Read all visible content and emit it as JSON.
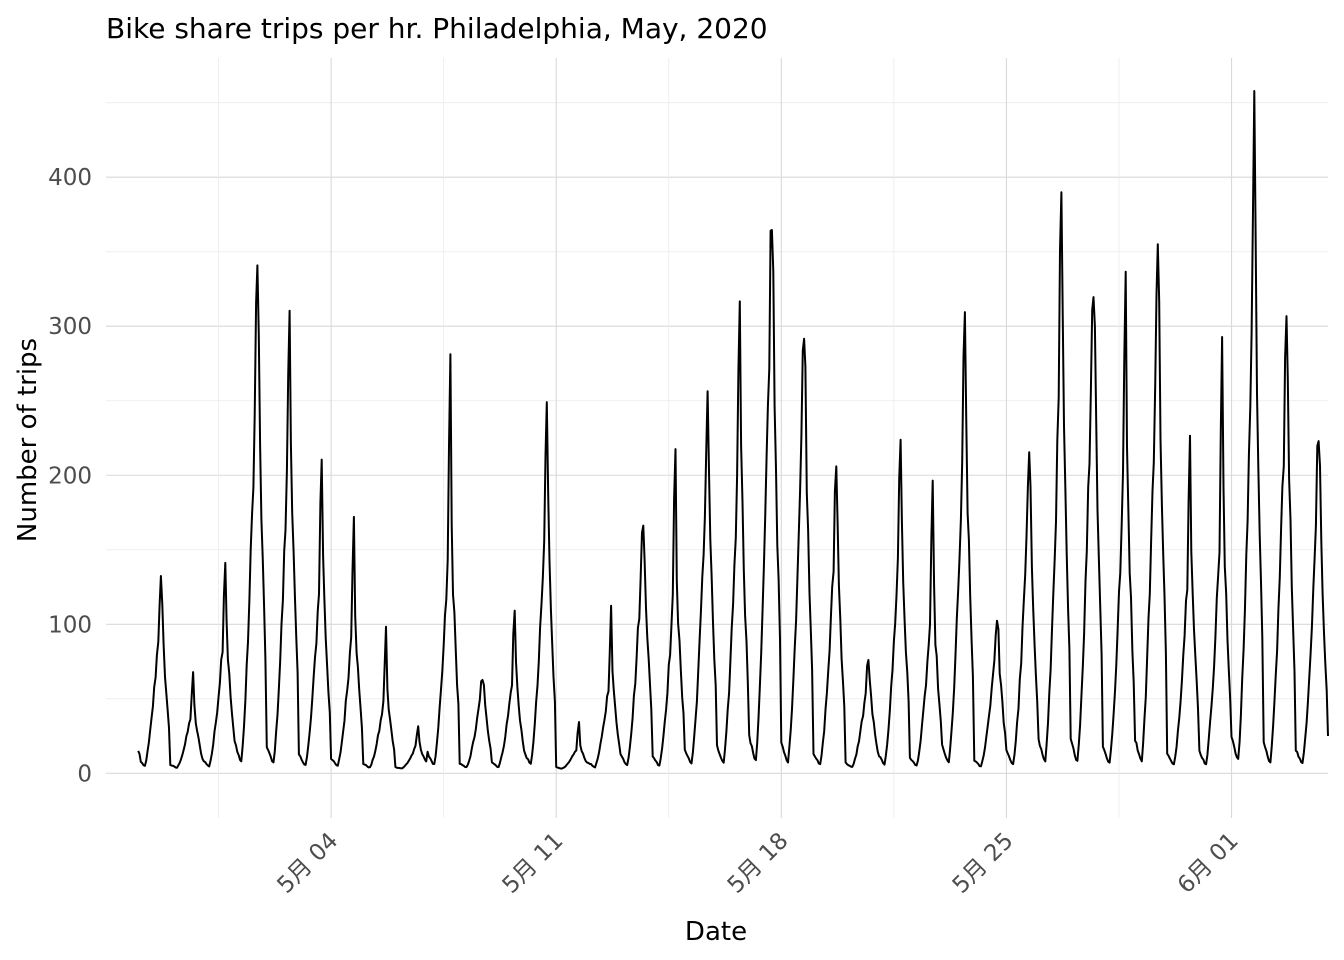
{
  "chart_data": {
    "type": "line",
    "title": "Bike share trips per hr. Philadelphia, May, 2020",
    "xlabel": "Date",
    "ylabel": "Number of trips",
    "x_start": "2020-04-28",
    "x_end": "2020-06-03",
    "xlim": [
      "2020-04-27",
      "2020-06-04"
    ],
    "ylim": [
      -30,
      480
    ],
    "x_ticks": [
      {
        "date": "2020-05-04",
        "label": "5月 04"
      },
      {
        "date": "2020-05-11",
        "label": "5月 11"
      },
      {
        "date": "2020-05-18",
        "label": "5月 18"
      },
      {
        "date": "2020-05-25",
        "label": "5月 25"
      },
      {
        "date": "2020-06-01",
        "label": "6月 01"
      }
    ],
    "y_ticks": [
      0,
      100,
      200,
      300,
      400
    ],
    "grid": true,
    "legend": "none",
    "line_color": "#000000",
    "daily_peaks": [
      {
        "date": "2020-04-28",
        "peak": 128,
        "secondary": 118
      },
      {
        "date": "2020-04-29",
        "peak": 65,
        "secondary": 48
      },
      {
        "date": "2020-04-30",
        "peak": 145,
        "secondary": 112
      },
      {
        "date": "2020-05-01",
        "peak": 345,
        "secondary": 308
      },
      {
        "date": "2020-05-02",
        "peak": 313,
        "secondary": 255
      },
      {
        "date": "2020-05-03",
        "peak": 212,
        "secondary": 162
      },
      {
        "date": "2020-05-04",
        "peak": 180,
        "secondary": 120
      },
      {
        "date": "2020-05-05",
        "peak": 98,
        "secondary": 60
      },
      {
        "date": "2020-05-06",
        "peak": 32,
        "secondary": 22
      },
      {
        "date": "2020-05-07",
        "peak": 277,
        "secondary": 180
      },
      {
        "date": "2020-05-08",
        "peak": 65,
        "secondary": 62
      },
      {
        "date": "2020-05-09",
        "peak": 110,
        "secondary": 80
      },
      {
        "date": "2020-05-10",
        "peak": 249,
        "secondary": 198
      },
      {
        "date": "2020-05-11",
        "peak": 35,
        "secondary": 20
      },
      {
        "date": "2020-05-12",
        "peak": 108,
        "secondary": 75
      },
      {
        "date": "2020-05-13",
        "peak": 168,
        "secondary": 165
      },
      {
        "date": "2020-05-14",
        "peak": 226,
        "secondary": 148
      },
      {
        "date": "2020-05-15",
        "peak": 255,
        "secondary": 225
      },
      {
        "date": "2020-05-16",
        "peak": 334,
        "secondary": 250
      },
      {
        "date": "2020-05-17",
        "peak": 383,
        "secondary": 362
      },
      {
        "date": "2020-05-18",
        "peak": 310,
        "secondary": 285
      },
      {
        "date": "2020-05-19",
        "peak": 214,
        "secondary": 180
      },
      {
        "date": "2020-05-20",
        "peak": 75,
        "secondary": 70
      },
      {
        "date": "2020-05-21",
        "peak": 226,
        "secondary": 185
      },
      {
        "date": "2020-05-22",
        "peak": 186,
        "secondary": 130
      },
      {
        "date": "2020-05-23",
        "peak": 301,
        "secondary": 260
      },
      {
        "date": "2020-05-24",
        "peak": 102,
        "secondary": 100
      },
      {
        "date": "2020-05-25",
        "peak": 204,
        "secondary": 200
      },
      {
        "date": "2020-05-26",
        "peak": 394,
        "secondary": 320
      },
      {
        "date": "2020-05-27",
        "peak": 333,
        "secondary": 330
      },
      {
        "date": "2020-05-28",
        "peak": 334,
        "secondary": 250
      },
      {
        "date": "2020-05-29",
        "peak": 341,
        "secondary": 335
      },
      {
        "date": "2020-05-30",
        "peak": 239,
        "secondary": 170
      },
      {
        "date": "2020-05-31",
        "peak": 288,
        "secondary": 200
      },
      {
        "date": "2020-06-01",
        "peak": 449,
        "secondary": 378
      },
      {
        "date": "2020-06-02",
        "peak": 296,
        "secondary": 285
      },
      {
        "date": "2020-06-03",
        "peak": 229,
        "secondary": 220
      }
    ],
    "end_value": 25
  }
}
